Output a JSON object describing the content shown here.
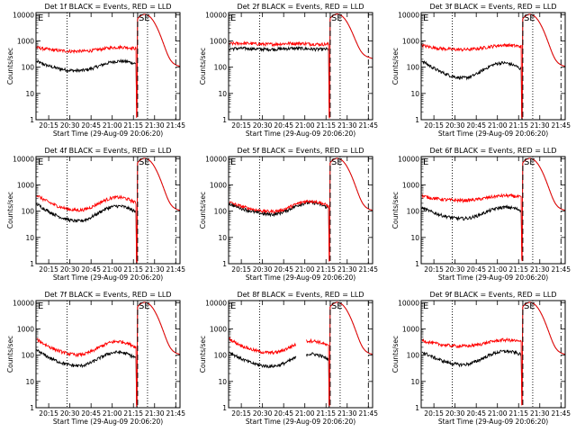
{
  "colors": {
    "events": "#000000",
    "lld": "#ff0000",
    "axis": "#000000",
    "background": "#ffffff"
  },
  "chart_data": [
    {
      "type": "line",
      "title": "Det 1f BLACK = Events, RED = LLD",
      "xlabel": "Start Time (29-Aug-09 20:06:20)",
      "ylabel": "Counts/sec",
      "flag_left": "E",
      "flag_right": "SE",
      "x_ticks": [
        "20:15",
        "20:30",
        "20:45",
        "21:00",
        "21:15",
        "21:30",
        "21:45"
      ],
      "y_ticks": [
        "1",
        "10",
        "100",
        "1000",
        "10000"
      ],
      "yscale": "log",
      "ylim": [
        1,
        12000
      ],
      "xlim": [
        "20:06",
        "21:48"
      ],
      "grid": false,
      "vlines": [
        {
          "t": "20:28",
          "style": "dotted"
        },
        {
          "t": "21:18",
          "style": "dashed"
        },
        {
          "t": "21:25",
          "style": "dotted"
        },
        {
          "t": "21:45",
          "style": "dashdot"
        }
      ],
      "series": [
        {
          "name": "Events",
          "color": "#000000",
          "kind": "A",
          "base": 60,
          "amp": 110,
          "spike": 3
        },
        {
          "name": "LLD",
          "color": "#ff0000",
          "kind": "A",
          "base": 380,
          "amp": 200,
          "spike": 1
        }
      ]
    },
    {
      "type": "line",
      "title": "Det 2f BLACK = Events, RED = LLD",
      "xlabel": "Start Time (29-Aug-09 20:06:20)",
      "ylabel": "Counts/sec",
      "flag_left": "E",
      "flag_right": "SE",
      "x_ticks": [
        "20:15",
        "20:30",
        "20:45",
        "21:00",
        "21:15",
        "21:30",
        "21:45"
      ],
      "y_ticks": [
        "1",
        "10",
        "100",
        "1000",
        "10000"
      ],
      "yscale": "log",
      "ylim": [
        1,
        12000
      ],
      "xlim": [
        "20:06",
        "21:48"
      ],
      "grid": false,
      "vlines": [
        {
          "t": "20:28",
          "style": "dotted"
        },
        {
          "t": "21:18",
          "style": "dashed"
        },
        {
          "t": "21:25",
          "style": "dotted"
        },
        {
          "t": "21:45",
          "style": "dashdot"
        }
      ],
      "series": [
        {
          "name": "Events",
          "color": "#000000",
          "kind": "F",
          "base": 500,
          "amp": 0,
          "spike": 3
        },
        {
          "name": "LLD",
          "color": "#ff0000",
          "kind": "F",
          "base": 780,
          "amp": 0,
          "spike": 1
        }
      ]
    },
    {
      "type": "line",
      "title": "Det 3f BLACK = Events, RED = LLD",
      "xlabel": "Start Time (29-Aug-09 20:06:20)",
      "ylabel": "Counts/sec",
      "flag_left": "E",
      "flag_right": "SE",
      "x_ticks": [
        "20:15",
        "20:30",
        "20:45",
        "21:00",
        "21:15",
        "21:30",
        "21:45"
      ],
      "y_ticks": [
        "1",
        "10",
        "100",
        "1000",
        "10000"
      ],
      "yscale": "log",
      "ylim": [
        1,
        12000
      ],
      "xlim": [
        "20:06",
        "21:48"
      ],
      "grid": false,
      "vlines": [
        {
          "t": "20:28",
          "style": "dotted"
        },
        {
          "t": "21:18",
          "style": "dashed"
        },
        {
          "t": "21:25",
          "style": "dotted"
        },
        {
          "t": "21:45",
          "style": "dashdot"
        }
      ],
      "series": [
        {
          "name": "Events",
          "color": "#000000",
          "kind": "B",
          "base": 28,
          "amp": 130,
          "spike": 1
        },
        {
          "name": "LLD",
          "color": "#ff0000",
          "kind": "A",
          "base": 440,
          "amp": 250,
          "spike": 1
        }
      ]
    },
    {
      "type": "line",
      "title": "Det 4f BLACK = Events, RED = LLD",
      "xlabel": "Start Time (29-Aug-09 20:06:20)",
      "ylabel": "Counts/sec",
      "flag_left": "E",
      "flag_right": "SE",
      "x_ticks": [
        "20:15",
        "20:30",
        "20:45",
        "21:00",
        "21:15",
        "21:30",
        "21:45"
      ],
      "y_ticks": [
        "1",
        "10",
        "100",
        "1000",
        "10000"
      ],
      "yscale": "log",
      "ylim": [
        1,
        12000
      ],
      "xlim": [
        "20:06",
        "21:48"
      ],
      "grid": false,
      "vlines": [
        {
          "t": "20:28",
          "style": "dotted"
        },
        {
          "t": "21:18",
          "style": "dashed"
        },
        {
          "t": "21:25",
          "style": "dotted"
        },
        {
          "t": "21:45",
          "style": "dashdot"
        }
      ],
      "series": [
        {
          "name": "Events",
          "color": "#000000",
          "kind": "B",
          "base": 30,
          "amp": 140,
          "spike": 1
        },
        {
          "name": "LLD",
          "color": "#ff0000",
          "kind": "B",
          "base": 85,
          "amp": 280,
          "spike": 1
        }
      ]
    },
    {
      "type": "line",
      "title": "Det 5f BLACK = Events, RED = LLD",
      "xlabel": "Start Time (29-Aug-09 20:06:20)",
      "ylabel": "Counts/sec",
      "flag_left": "E",
      "flag_right": "SE",
      "x_ticks": [
        "20:15",
        "20:30",
        "20:45",
        "21:00",
        "21:15",
        "21:30",
        "21:45"
      ],
      "y_ticks": [
        "1",
        "10",
        "100",
        "1000",
        "10000"
      ],
      "yscale": "log",
      "ylim": [
        1,
        12000
      ],
      "xlim": [
        "20:06",
        "21:48"
      ],
      "grid": false,
      "vlines": [
        {
          "t": "20:28",
          "style": "dotted"
        },
        {
          "t": "21:18",
          "style": "dashed"
        },
        {
          "t": "21:25",
          "style": "dotted"
        },
        {
          "t": "21:45",
          "style": "dashdot"
        }
      ],
      "series": [
        {
          "name": "Events",
          "color": "#000000",
          "kind": "C",
          "base": 55,
          "amp": 140,
          "spike": 3
        },
        {
          "name": "LLD",
          "color": "#ff0000",
          "kind": "C",
          "base": 75,
          "amp": 150,
          "spike": 1
        }
      ]
    },
    {
      "type": "line",
      "title": "Det 6f BLACK = Events, RED = LLD",
      "xlabel": "Start Time (29-Aug-09 20:06:20)",
      "ylabel": "Counts/sec",
      "flag_left": "E",
      "flag_right": "SE",
      "x_ticks": [
        "20:15",
        "20:30",
        "20:45",
        "21:00",
        "21:15",
        "21:30",
        "21:45"
      ],
      "y_ticks": [
        "1",
        "10",
        "100",
        "1000",
        "10000"
      ],
      "yscale": "log",
      "ylim": [
        1,
        12000
      ],
      "xlim": [
        "20:06",
        "21:48"
      ],
      "grid": false,
      "vlines": [
        {
          "t": "20:28",
          "style": "dotted"
        },
        {
          "t": "21:18",
          "style": "dashed"
        },
        {
          "t": "21:25",
          "style": "dotted"
        },
        {
          "t": "21:45",
          "style": "dashdot"
        }
      ],
      "series": [
        {
          "name": "Events",
          "color": "#000000",
          "kind": "A",
          "base": 40,
          "amp": 100,
          "spike": 3
        },
        {
          "name": "LLD",
          "color": "#ff0000",
          "kind": "A",
          "base": 240,
          "amp": 150,
          "spike": 1
        }
      ]
    },
    {
      "type": "line",
      "title": "Det 7f BLACK = Events, RED = LLD",
      "xlabel": "Start Time (29-Aug-09 20:06:20)",
      "ylabel": "Counts/sec",
      "flag_left": "E",
      "flag_right": "SE",
      "x_ticks": [
        "20:15",
        "20:30",
        "20:45",
        "21:00",
        "21:15",
        "21:30",
        "21:45"
      ],
      "y_ticks": [
        "1",
        "10",
        "100",
        "1000",
        "10000"
      ],
      "yscale": "log",
      "ylim": [
        1,
        12000
      ],
      "xlim": [
        "20:06",
        "21:48"
      ],
      "grid": false,
      "vlines": [
        {
          "t": "20:28",
          "style": "dotted"
        },
        {
          "t": "21:18",
          "style": "dashed"
        },
        {
          "t": "21:25",
          "style": "dotted"
        },
        {
          "t": "21:45",
          "style": "dashdot"
        }
      ],
      "series": [
        {
          "name": "Events",
          "color": "#000000",
          "kind": "B",
          "base": 30,
          "amp": 110,
          "spike": 1
        },
        {
          "name": "LLD",
          "color": "#ff0000",
          "kind": "B",
          "base": 80,
          "amp": 280,
          "spike": 1
        }
      ]
    },
    {
      "type": "line",
      "title": "Det 8f BLACK = Events, RED = LLD",
      "xlabel": "Start Time (29-Aug-09 20:06:20)",
      "ylabel": "Counts/sec",
      "flag_left": "E",
      "flag_right": "SE",
      "x_ticks": [
        "20:15",
        "20:30",
        "20:45",
        "21:00",
        "21:15",
        "21:30",
        "21:45"
      ],
      "y_ticks": [
        "1",
        "10",
        "100",
        "1000",
        "10000"
      ],
      "yscale": "log",
      "ylim": [
        1,
        12000
      ],
      "xlim": [
        "20:06",
        "21:48"
      ],
      "grid": false,
      "vlines": [
        {
          "t": "20:28",
          "style": "dotted"
        },
        {
          "t": "21:18",
          "style": "dashed"
        },
        {
          "t": "21:25",
          "style": "dotted"
        },
        {
          "t": "21:45",
          "style": "dashdot"
        }
      ],
      "series": [
        {
          "name": "Events",
          "color": "#000000",
          "kind": "B",
          "base": 30,
          "amp": 90,
          "spike": 1,
          "gaps": [
            [
              48,
              55
            ]
          ]
        },
        {
          "name": "LLD",
          "color": "#ff0000",
          "kind": "B",
          "base": 100,
          "amp": 280,
          "spike": 1,
          "gaps": [
            [
              48,
              55
            ]
          ]
        }
      ]
    },
    {
      "type": "line",
      "title": "Det 9f BLACK = Events, RED = LLD",
      "xlabel": "Start Time (29-Aug-09 20:06:20)",
      "ylabel": "Counts/sec",
      "flag_left": "E",
      "flag_right": "SE",
      "x_ticks": [
        "20:15",
        "20:30",
        "20:45",
        "21:00",
        "21:15",
        "21:30",
        "21:45"
      ],
      "y_ticks": [
        "1",
        "10",
        "100",
        "1000",
        "10000"
      ],
      "yscale": "log",
      "ylim": [
        1,
        12000
      ],
      "xlim": [
        "20:06",
        "21:48"
      ],
      "grid": false,
      "vlines": [
        {
          "t": "20:28",
          "style": "dotted"
        },
        {
          "t": "21:18",
          "style": "dashed"
        },
        {
          "t": "21:25",
          "style": "dotted"
        },
        {
          "t": "21:45",
          "style": "dashdot"
        }
      ],
      "series": [
        {
          "name": "Events",
          "color": "#000000",
          "kind": "A",
          "base": 30,
          "amp": 110,
          "spike": 3
        },
        {
          "name": "LLD",
          "color": "#ff0000",
          "kind": "A",
          "base": 200,
          "amp": 180,
          "spike": 1
        }
      ]
    }
  ]
}
